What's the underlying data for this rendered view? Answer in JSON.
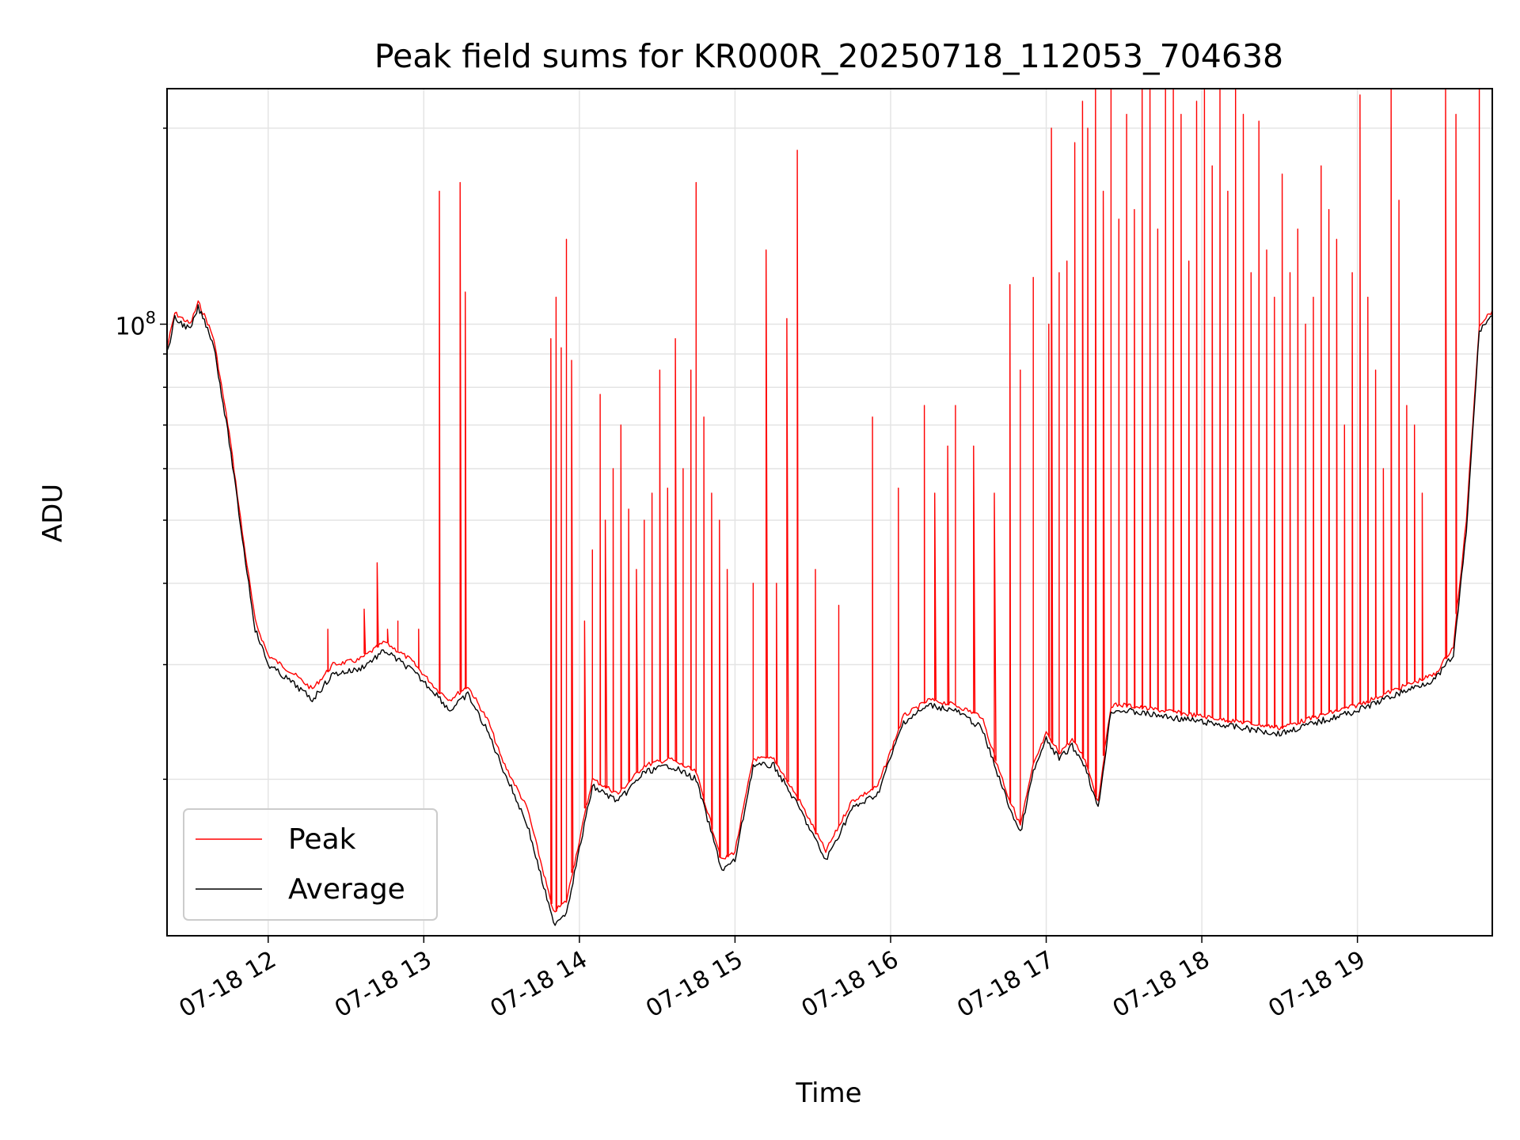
{
  "chart_data": {
    "type": "line",
    "title": "Peak field sums for KR000R_20250718_112053_704638",
    "xlabel": "Time",
    "ylabel": "ADU",
    "y_scale": "log",
    "ylim": [
      11500000,
      230000000
    ],
    "xlim": [
      "2025-07-18 11:21",
      "2025-07-18 19:52"
    ],
    "x_ticks": [
      {
        "value": "2025-07-18 12:00",
        "label": "07-18 12"
      },
      {
        "value": "2025-07-18 13:00",
        "label": "07-18 13"
      },
      {
        "value": "2025-07-18 14:00",
        "label": "07-18 14"
      },
      {
        "value": "2025-07-18 15:00",
        "label": "07-18 15"
      },
      {
        "value": "2025-07-18 16:00",
        "label": "07-18 16"
      },
      {
        "value": "2025-07-18 17:00",
        "label": "07-18 17"
      },
      {
        "value": "2025-07-18 18:00",
        "label": "07-18 18"
      },
      {
        "value": "2025-07-18 19:00",
        "label": "07-18 19"
      }
    ],
    "y_ticks": [
      {
        "value": 100000000,
        "base": "10",
        "exp": "8"
      }
    ],
    "grid": true,
    "legend_position": "lower-left",
    "series": [
      {
        "name": "Peak",
        "color": "#ff0000",
        "x": [
          "2025-07-18 11:21",
          "2025-07-18 11:24",
          "2025-07-18 11:30",
          "2025-07-18 11:33",
          "2025-07-18 11:36",
          "2025-07-18 11:39",
          "2025-07-18 11:45",
          "2025-07-18 11:50",
          "2025-07-18 11:55",
          "2025-07-18 12:00",
          "2025-07-18 12:10",
          "2025-07-18 12:17",
          "2025-07-18 12:25",
          "2025-07-18 12:35",
          "2025-07-18 12:45",
          "2025-07-18 12:55",
          "2025-07-18 13:05",
          "2025-07-18 13:10",
          "2025-07-18 13:17",
          "2025-07-18 13:25",
          "2025-07-18 13:30",
          "2025-07-18 13:40",
          "2025-07-18 13:50",
          "2025-07-18 13:55",
          "2025-07-18 14:05",
          "2025-07-18 14:15",
          "2025-07-18 14:25",
          "2025-07-18 14:35",
          "2025-07-18 14:45",
          "2025-07-18 14:55",
          "2025-07-18 15:00",
          "2025-07-18 15:07",
          "2025-07-18 15:15",
          "2025-07-18 15:25",
          "2025-07-18 15:35",
          "2025-07-18 15:45",
          "2025-07-18 15:55",
          "2025-07-18 16:05",
          "2025-07-18 16:15",
          "2025-07-18 16:25",
          "2025-07-18 16:35",
          "2025-07-18 16:45",
          "2025-07-18 16:50",
          "2025-07-18 16:55",
          "2025-07-18 17:00",
          "2025-07-18 17:05",
          "2025-07-18 17:10",
          "2025-07-18 17:15",
          "2025-07-18 17:20",
          "2025-07-18 17:25",
          "2025-07-18 17:30",
          "2025-07-18 17:45",
          "2025-07-18 18:00",
          "2025-07-18 18:15",
          "2025-07-18 18:30",
          "2025-07-18 18:45",
          "2025-07-18 19:00",
          "2025-07-18 19:15",
          "2025-07-18 19:30",
          "2025-07-18 19:37",
          "2025-07-18 19:42",
          "2025-07-18 19:47",
          "2025-07-18 19:52"
        ],
        "y": [
          92000000,
          104000000,
          100000000,
          108000000,
          102000000,
          95000000,
          68000000,
          48000000,
          35000000,
          31000000,
          29000000,
          27500000,
          30000000,
          30500000,
          32500000,
          30500000,
          27500000,
          26500000,
          27800000,
          24500000,
          21500000,
          18000000,
          12500000,
          13000000,
          20000000,
          19000000,
          21000000,
          21500000,
          20500000,
          15000000,
          15500000,
          21500000,
          21500000,
          18500000,
          15500000,
          18500000,
          19500000,
          25000000,
          26500000,
          26000000,
          25000000,
          19000000,
          17000000,
          21000000,
          23500000,
          22000000,
          23000000,
          21500000,
          18500000,
          26000000,
          26000000,
          25500000,
          25000000,
          24500000,
          24000000,
          25000000,
          26000000,
          27500000,
          29000000,
          32000000,
          50000000,
          100000000,
          105000000
        ],
        "spikes": [
          {
            "x": "2025-07-18 12:23",
            "y": 34000000
          },
          {
            "x": "2025-07-18 12:37",
            "y": 36500000
          },
          {
            "x": "2025-07-18 12:42",
            "y": 43000000
          },
          {
            "x": "2025-07-18 12:46",
            "y": 34000000
          },
          {
            "x": "2025-07-18 12:50",
            "y": 35000000
          },
          {
            "x": "2025-07-18 12:58",
            "y": 34000000
          },
          {
            "x": "2025-07-18 13:06",
            "y": 160000000
          },
          {
            "x": "2025-07-18 13:14",
            "y": 165000000
          },
          {
            "x": "2025-07-18 13:16",
            "y": 112000000
          },
          {
            "x": "2025-07-18 13:49",
            "y": 95000000
          },
          {
            "x": "2025-07-18 13:51",
            "y": 110000000
          },
          {
            "x": "2025-07-18 13:53",
            "y": 92000000
          },
          {
            "x": "2025-07-18 13:55",
            "y": 135000000
          },
          {
            "x": "2025-07-18 13:57",
            "y": 88000000
          },
          {
            "x": "2025-07-18 14:02",
            "y": 35000000
          },
          {
            "x": "2025-07-18 14:05",
            "y": 45000000
          },
          {
            "x": "2025-07-18 14:08",
            "y": 78000000
          },
          {
            "x": "2025-07-18 14:10",
            "y": 50000000
          },
          {
            "x": "2025-07-18 14:13",
            "y": 60000000
          },
          {
            "x": "2025-07-18 14:16",
            "y": 70000000
          },
          {
            "x": "2025-07-18 14:19",
            "y": 52000000
          },
          {
            "x": "2025-07-18 14:22",
            "y": 42000000
          },
          {
            "x": "2025-07-18 14:25",
            "y": 50000000
          },
          {
            "x": "2025-07-18 14:28",
            "y": 55000000
          },
          {
            "x": "2025-07-18 14:31",
            "y": 85000000
          },
          {
            "x": "2025-07-18 14:34",
            "y": 56000000
          },
          {
            "x": "2025-07-18 14:37",
            "y": 95000000
          },
          {
            "x": "2025-07-18 14:40",
            "y": 60000000
          },
          {
            "x": "2025-07-18 14:43",
            "y": 85000000
          },
          {
            "x": "2025-07-18 14:45",
            "y": 165000000
          },
          {
            "x": "2025-07-18 14:48",
            "y": 72000000
          },
          {
            "x": "2025-07-18 14:51",
            "y": 55000000
          },
          {
            "x": "2025-07-18 14:54",
            "y": 50000000
          },
          {
            "x": "2025-07-18 14:57",
            "y": 42000000
          },
          {
            "x": "2025-07-18 15:07",
            "y": 40000000
          },
          {
            "x": "2025-07-18 15:12",
            "y": 130000000
          },
          {
            "x": "2025-07-18 15:16",
            "y": 40000000
          },
          {
            "x": "2025-07-18 15:20",
            "y": 102000000
          },
          {
            "x": "2025-07-18 15:24",
            "y": 185000000
          },
          {
            "x": "2025-07-18 15:31",
            "y": 42000000
          },
          {
            "x": "2025-07-18 15:40",
            "y": 37000000
          },
          {
            "x": "2025-07-18 15:53",
            "y": 72000000
          },
          {
            "x": "2025-07-18 16:03",
            "y": 56000000
          },
          {
            "x": "2025-07-18 16:13",
            "y": 75000000
          },
          {
            "x": "2025-07-18 16:17",
            "y": 55000000
          },
          {
            "x": "2025-07-18 16:22",
            "y": 65000000
          },
          {
            "x": "2025-07-18 16:25",
            "y": 75000000
          },
          {
            "x": "2025-07-18 16:32",
            "y": 65000000
          },
          {
            "x": "2025-07-18 16:40",
            "y": 55000000
          },
          {
            "x": "2025-07-18 16:46",
            "y": 115000000
          },
          {
            "x": "2025-07-18 16:50",
            "y": 85000000
          },
          {
            "x": "2025-07-18 16:55",
            "y": 118000000
          },
          {
            "x": "2025-07-18 17:01",
            "y": 100000000
          },
          {
            "x": "2025-07-18 17:05",
            "y": 120000000
          },
          {
            "x": "2025-07-18 17:02",
            "y": 200000000
          },
          {
            "x": "2025-07-18 17:08",
            "y": 125000000
          },
          {
            "x": "2025-07-18 17:11",
            "y": 190000000
          },
          {
            "x": "2025-07-18 17:14",
            "y": 220000000
          },
          {
            "x": "2025-07-18 17:16",
            "y": 200000000
          },
          {
            "x": "2025-07-18 17:19",
            "y": 230000000
          },
          {
            "x": "2025-07-18 17:22",
            "y": 160000000
          },
          {
            "x": "2025-07-18 17:25",
            "y": 230000000
          },
          {
            "x": "2025-07-18 17:28",
            "y": 145000000
          },
          {
            "x": "2025-07-18 17:31",
            "y": 210000000
          },
          {
            "x": "2025-07-18 17:34",
            "y": 150000000
          },
          {
            "x": "2025-07-18 17:37",
            "y": 230000000
          },
          {
            "x": "2025-07-18 17:40",
            "y": 230000000
          },
          {
            "x": "2025-07-18 17:43",
            "y": 140000000
          },
          {
            "x": "2025-07-18 17:46",
            "y": 230000000
          },
          {
            "x": "2025-07-18 17:49",
            "y": 230000000
          },
          {
            "x": "2025-07-18 17:52",
            "y": 210000000
          },
          {
            "x": "2025-07-18 17:55",
            "y": 125000000
          },
          {
            "x": "2025-07-18 17:58",
            "y": 220000000
          },
          {
            "x": "2025-07-18 18:01",
            "y": 230000000
          },
          {
            "x": "2025-07-18 18:04",
            "y": 175000000
          },
          {
            "x": "2025-07-18 18:07",
            "y": 230000000
          },
          {
            "x": "2025-07-18 18:10",
            "y": 160000000
          },
          {
            "x": "2025-07-18 18:13",
            "y": 230000000
          },
          {
            "x": "2025-07-18 18:16",
            "y": 210000000
          },
          {
            "x": "2025-07-18 18:19",
            "y": 120000000
          },
          {
            "x": "2025-07-18 18:22",
            "y": 205000000
          },
          {
            "x": "2025-07-18 18:25",
            "y": 130000000
          },
          {
            "x": "2025-07-18 18:28",
            "y": 110000000
          },
          {
            "x": "2025-07-18 18:31",
            "y": 170000000
          },
          {
            "x": "2025-07-18 18:34",
            "y": 120000000
          },
          {
            "x": "2025-07-18 18:37",
            "y": 140000000
          },
          {
            "x": "2025-07-18 18:40",
            "y": 100000000
          },
          {
            "x": "2025-07-18 18:43",
            "y": 110000000
          },
          {
            "x": "2025-07-18 18:46",
            "y": 175000000
          },
          {
            "x": "2025-07-18 18:49",
            "y": 150000000
          },
          {
            "x": "2025-07-18 18:52",
            "y": 135000000
          },
          {
            "x": "2025-07-18 18:55",
            "y": 70000000
          },
          {
            "x": "2025-07-18 18:58",
            "y": 120000000
          },
          {
            "x": "2025-07-18 19:01",
            "y": 225000000
          },
          {
            "x": "2025-07-18 19:04",
            "y": 110000000
          },
          {
            "x": "2025-07-18 19:07",
            "y": 85000000
          },
          {
            "x": "2025-07-18 19:10",
            "y": 60000000
          },
          {
            "x": "2025-07-18 19:13",
            "y": 230000000
          },
          {
            "x": "2025-07-18 19:16",
            "y": 155000000
          },
          {
            "x": "2025-07-18 19:19",
            "y": 75000000
          },
          {
            "x": "2025-07-18 19:22",
            "y": 70000000
          },
          {
            "x": "2025-07-18 19:25",
            "y": 55000000
          },
          {
            "x": "2025-07-18 19:34",
            "y": 230000000
          },
          {
            "x": "2025-07-18 19:38",
            "y": 210000000
          },
          {
            "x": "2025-07-18 19:47",
            "y": 230000000
          }
        ]
      },
      {
        "name": "Average",
        "color": "#000000",
        "x": [
          "2025-07-18 11:21",
          "2025-07-18 11:24",
          "2025-07-18 11:30",
          "2025-07-18 11:33",
          "2025-07-18 11:36",
          "2025-07-18 11:39",
          "2025-07-18 11:45",
          "2025-07-18 11:50",
          "2025-07-18 11:55",
          "2025-07-18 12:00",
          "2025-07-18 12:10",
          "2025-07-18 12:17",
          "2025-07-18 12:25",
          "2025-07-18 12:35",
          "2025-07-18 12:45",
          "2025-07-18 12:55",
          "2025-07-18 13:05",
          "2025-07-18 13:10",
          "2025-07-18 13:17",
          "2025-07-18 13:25",
          "2025-07-18 13:30",
          "2025-07-18 13:40",
          "2025-07-18 13:50",
          "2025-07-18 13:55",
          "2025-07-18 14:05",
          "2025-07-18 14:15",
          "2025-07-18 14:25",
          "2025-07-18 14:35",
          "2025-07-18 14:45",
          "2025-07-18 14:55",
          "2025-07-18 15:00",
          "2025-07-18 15:07",
          "2025-07-18 15:15",
          "2025-07-18 15:25",
          "2025-07-18 15:35",
          "2025-07-18 15:45",
          "2025-07-18 15:55",
          "2025-07-18 16:05",
          "2025-07-18 16:15",
          "2025-07-18 16:25",
          "2025-07-18 16:35",
          "2025-07-18 16:45",
          "2025-07-18 16:50",
          "2025-07-18 16:55",
          "2025-07-18 17:00",
          "2025-07-18 17:05",
          "2025-07-18 17:10",
          "2025-07-18 17:15",
          "2025-07-18 17:20",
          "2025-07-18 17:25",
          "2025-07-18 17:30",
          "2025-07-18 17:45",
          "2025-07-18 18:00",
          "2025-07-18 18:15",
          "2025-07-18 18:30",
          "2025-07-18 18:45",
          "2025-07-18 19:00",
          "2025-07-18 19:15",
          "2025-07-18 19:30",
          "2025-07-18 19:37",
          "2025-07-18 19:42",
          "2025-07-18 19:47",
          "2025-07-18 19:52"
        ],
        "y": [
          90000000,
          102000000,
          98000000,
          106000000,
          100000000,
          93000000,
          66000000,
          47000000,
          34000000,
          30000000,
          28000000,
          26500000,
          29000000,
          29500000,
          31500000,
          29500000,
          27000000,
          25500000,
          27000000,
          23500000,
          21000000,
          17000000,
          12000000,
          12500000,
          19500000,
          18500000,
          20500000,
          21000000,
          20000000,
          14500000,
          15000000,
          21000000,
          21000000,
          18000000,
          15000000,
          18000000,
          19000000,
          24500000,
          26000000,
          25500000,
          24000000,
          18500000,
          16500000,
          20500000,
          23000000,
          21500000,
          22500000,
          21000000,
          18000000,
          25500000,
          25500000,
          25000000,
          24500000,
          24000000,
          23500000,
          24500000,
          25500000,
          27000000,
          28500000,
          31000000,
          48000000,
          98000000,
          103000000
        ]
      }
    ]
  }
}
